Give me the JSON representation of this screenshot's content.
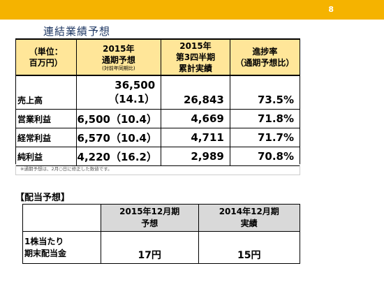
{
  "header": {
    "page_number": "8",
    "accent": "#f5b300"
  },
  "title": "連結業績予想",
  "forecast_table": {
    "headers": {
      "unit_line1": "（単位：",
      "unit_line2": "百万円）",
      "fy_line1": "2015年",
      "fy_line2": "通期予想",
      "fy_sub": "(対前年同期比)",
      "q3_line1": "2015年",
      "q3_line2": "第3四半期",
      "q3_line3": "累計実績",
      "rate_line1": "進捗率",
      "rate_line2": "（通期予想比）"
    },
    "rows": [
      {
        "label": "売上高",
        "forecast": "36,500（14.1）",
        "actual": "26,843",
        "progress": "73.5%"
      },
      {
        "label": "営業利益",
        "forecast": "6,500（10.4）",
        "actual": "4,669",
        "progress": "71.8%"
      },
      {
        "label": "経常利益",
        "forecast": "6,570（10.4）",
        "actual": "4,711",
        "progress": "71.7%"
      },
      {
        "label": "純利益",
        "forecast": "4,220（16.2）",
        "actual": "2,989",
        "progress": "70.8%"
      }
    ],
    "note": "※通期予想は、2月○日に修正した数値です。",
    "header_bg": "#ffe699"
  },
  "dividend": {
    "title": "【配当予想】",
    "col2_line1": "2015年12月期",
    "col2_line2": "予想",
    "col3_line1": "2014年12月期",
    "col3_line2": "実績",
    "row_label_line1": "1株当たり",
    "row_label_line2": "期末配当金",
    "forecast_value": "17円",
    "actual_value": "15円"
  }
}
